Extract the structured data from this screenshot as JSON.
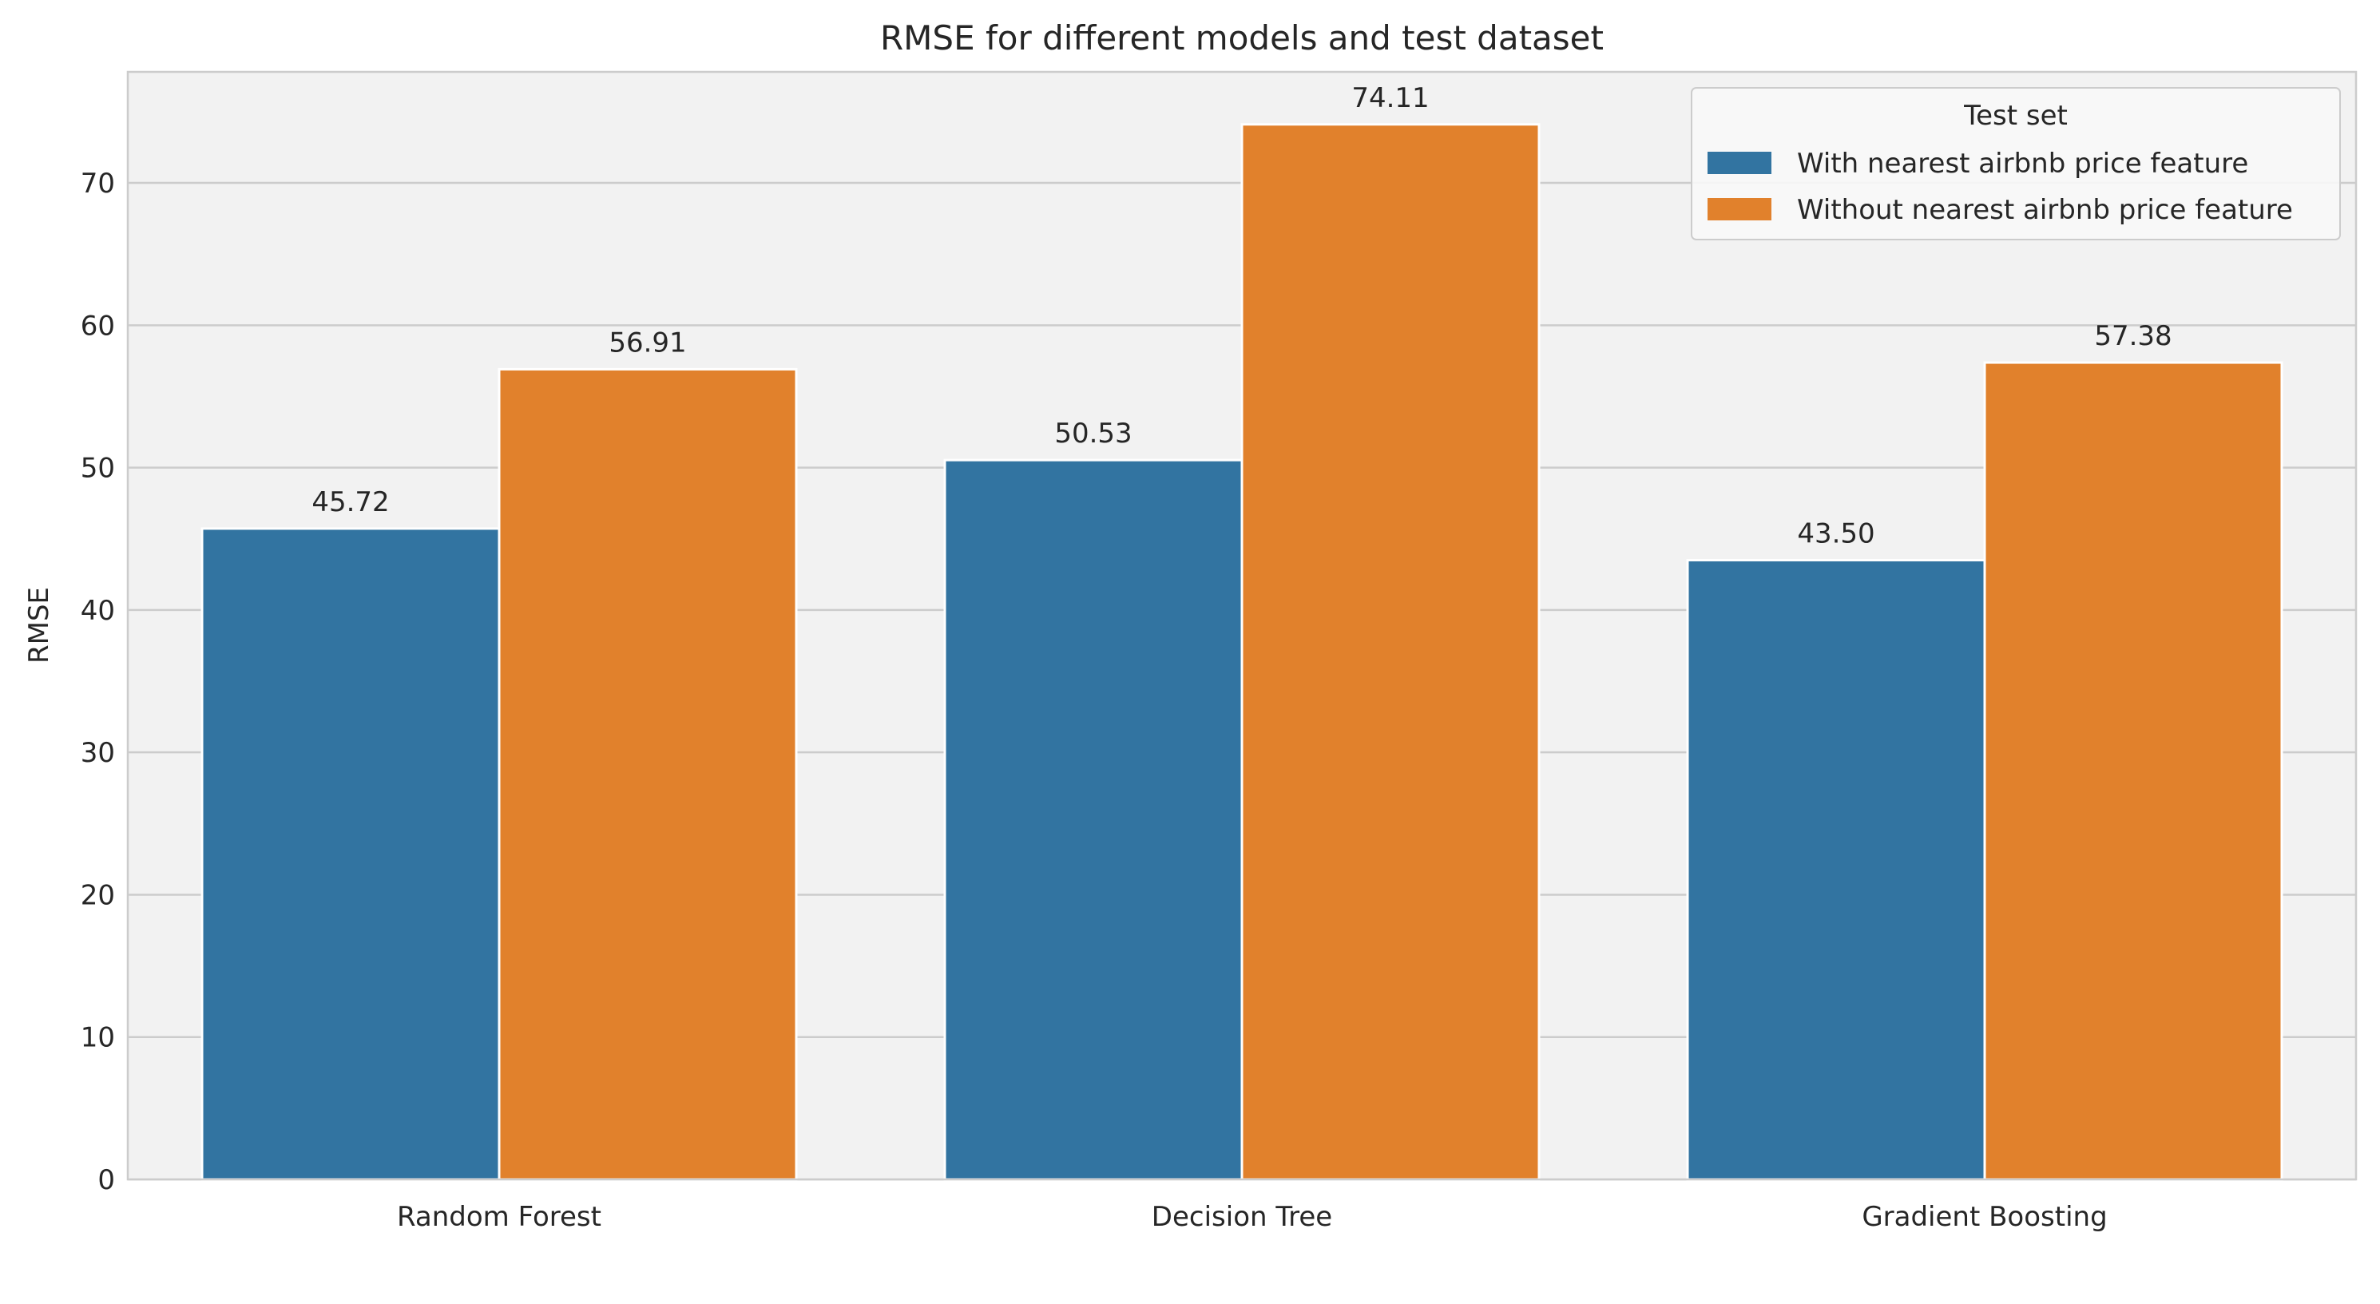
{
  "chart_data": {
    "type": "bar",
    "title": "RMSE for different models and test dataset",
    "xlabel": "",
    "ylabel": "RMSE",
    "categories": [
      "Random Forest",
      "Decision Tree",
      "Gradient Boosting"
    ],
    "series": [
      {
        "name": "With nearest airbnb price feature",
        "values": [
          45.72,
          50.53,
          43.5
        ],
        "labels": [
          "45.72",
          "50.53",
          "43.50"
        ],
        "color": "#3274a1"
      },
      {
        "name": "Without nearest airbnb price feature",
        "values": [
          56.91,
          74.11,
          57.38
        ],
        "labels": [
          "56.91",
          "74.11",
          "57.38"
        ],
        "color": "#e1812c"
      }
    ],
    "ylim": [
      0,
      77.8
    ],
    "yticks": [
      0,
      10,
      20,
      30,
      40,
      50,
      60,
      70
    ],
    "grid": "horizontal",
    "legend": {
      "title": "Test set",
      "placement": "top-right"
    },
    "colors": {
      "plot_background": "#f2f2f2",
      "grid": "#cccccc",
      "spine": "#cccccc"
    }
  }
}
